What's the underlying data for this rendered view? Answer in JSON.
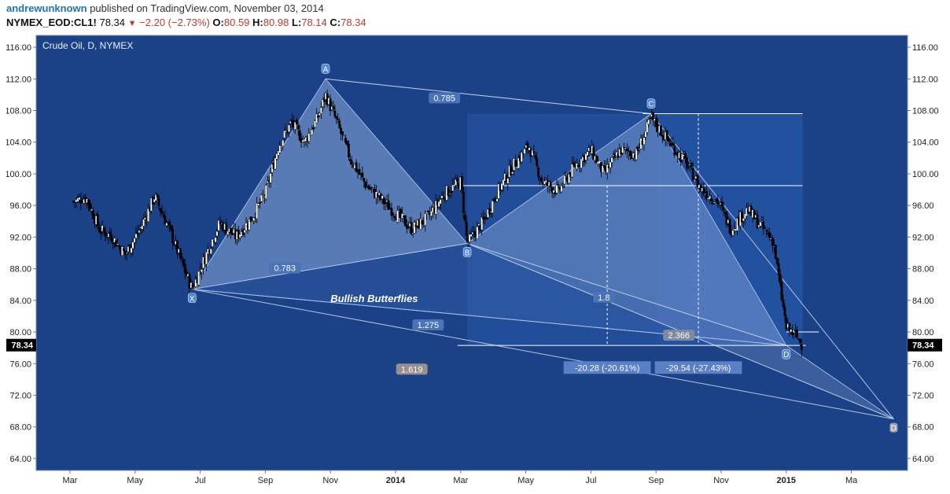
{
  "header": {
    "author": "andrewunknown",
    "published_text": "published on TradingView.com, November 03, 2014",
    "symbol": "NYMEX_EOD:CL1!",
    "last": "78.34",
    "change": "−2.20 (−2.73%)",
    "open_label": "O:",
    "open_value": "80.59",
    "high_label": "H:",
    "high_value": "80.98",
    "low_label": "L:",
    "low_value": "78.14",
    "close_label": "C:",
    "close_value": "78.34"
  },
  "colors": {
    "background": "#1b4287",
    "border": "#6f8bc1",
    "pattern_fill": "#8aa9da",
    "pattern_fill_dark": "#3f68b5",
    "candle_up": "#ffffff",
    "candle_down": "#000000",
    "label_bg": "#4a73b8",
    "price_tag": "#000000"
  },
  "chart_data": {
    "type": "candlestick",
    "title": "Crude Oil, D, NYMEX",
    "ylim": [
      62.5,
      117.5
    ],
    "y_ticks": [
      "116.00",
      "112.00",
      "108.00",
      "104.00",
      "100.00",
      "96.00",
      "92.00",
      "88.00",
      "84.00",
      "80.00",
      "76.00",
      "72.00",
      "68.00",
      "64.00"
    ],
    "x_ticks": [
      "Mar",
      "May",
      "Jul",
      "Sep",
      "Nov",
      "2014",
      "Mar",
      "May",
      "Jul",
      "Sep",
      "Nov",
      "2015",
      "Ma"
    ],
    "x_tick_bold": [
      false,
      false,
      false,
      false,
      false,
      true,
      false,
      false,
      false,
      false,
      false,
      true,
      false
    ],
    "last_price": "78.34",
    "annotation": "Bullish Butterflies",
    "swing_points": [
      {
        "label": "X",
        "month_index": 3.75,
        "price": 85.4
      },
      {
        "label": "A",
        "month_index": 7.85,
        "price": 112.0
      },
      {
        "label": "B",
        "month_index": 12.2,
        "price": 91.2
      },
      {
        "label": "C",
        "month_index": 17.85,
        "price": 107.6
      },
      {
        "label": "D",
        "month_index": 22.0,
        "price": 78.3
      },
      {
        "label": "D",
        "month_index": 25.3,
        "price": 69.0
      }
    ],
    "ratios": [
      "0.785",
      "0.783",
      "1.8",
      "1.275",
      "2.366",
      "1.619"
    ],
    "measurements": [
      "-20.28 (-20.61%)",
      "-29.54 (-27.43%)"
    ],
    "series_anchor": [
      [
        0.1,
        96.5
      ],
      [
        0.5,
        97
      ],
      [
        0.9,
        93
      ],
      [
        1.3,
        92
      ],
      [
        1.7,
        89.8
      ],
      [
        2.2,
        93.4
      ],
      [
        2.6,
        97.2
      ],
      [
        3.1,
        92.5
      ],
      [
        3.5,
        88
      ],
      [
        3.75,
        85.4
      ],
      [
        4.2,
        90
      ],
      [
        4.6,
        93.8
      ],
      [
        5.1,
        92
      ],
      [
        5.6,
        94.5
      ],
      [
        6.0,
        97.5
      ],
      [
        6.4,
        103.5
      ],
      [
        6.8,
        106.5
      ],
      [
        7.2,
        104
      ],
      [
        7.6,
        107
      ],
      [
        7.85,
        110
      ],
      [
        8.2,
        106.5
      ],
      [
        8.6,
        102
      ],
      [
        9.1,
        98.5
      ],
      [
        9.5,
        97
      ],
      [
        10.0,
        95
      ],
      [
        10.5,
        93
      ],
      [
        11.0,
        94.5
      ],
      [
        11.5,
        97.5
      ],
      [
        12.0,
        99
      ],
      [
        12.2,
        91.2
      ],
      [
        12.7,
        94
      ],
      [
        13.1,
        97.5
      ],
      [
        13.6,
        101
      ],
      [
        14.1,
        103.5
      ],
      [
        14.5,
        99
      ],
      [
        15.0,
        97.8
      ],
      [
        15.5,
        101
      ],
      [
        16.0,
        103
      ],
      [
        16.4,
        100
      ],
      [
        16.9,
        103
      ],
      [
        17.4,
        102.5
      ],
      [
        17.85,
        107
      ],
      [
        18.4,
        104
      ],
      [
        18.9,
        101.5
      ],
      [
        19.4,
        98
      ],
      [
        19.9,
        96.5
      ],
      [
        20.3,
        93
      ],
      [
        20.8,
        95.5
      ],
      [
        21.2,
        93.5
      ],
      [
        21.6,
        91.5
      ],
      [
        22.0,
        80.5
      ],
      [
        22.3,
        79.5
      ],
      [
        22.5,
        78.3
      ]
    ]
  }
}
